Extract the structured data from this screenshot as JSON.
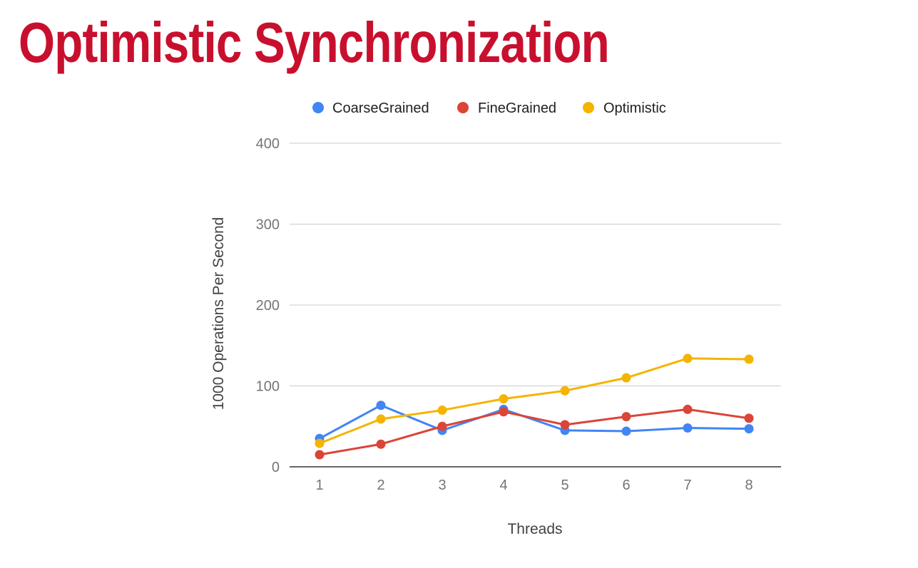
{
  "slide": {
    "title": "Optimistic Synchronization"
  },
  "chart_data": {
    "type": "line",
    "title": "",
    "xlabel": "Threads",
    "ylabel": "1000 Operations Per Second",
    "categories": [
      "1",
      "2",
      "3",
      "4",
      "5",
      "6",
      "7",
      "8"
    ],
    "ylim": [
      0,
      400
    ],
    "yticks": [
      0,
      100,
      200,
      300,
      400
    ],
    "grid": true,
    "legend": "top",
    "series": [
      {
        "name": "CoarseGrained",
        "color": "#4285f4",
        "values": [
          35,
          76,
          45,
          71,
          45,
          44,
          48,
          47
        ]
      },
      {
        "name": "FineGrained",
        "color": "#db4437",
        "values": [
          15,
          28,
          50,
          68,
          52,
          62,
          71,
          60
        ]
      },
      {
        "name": "Optimistic",
        "color": "#f4b400",
        "values": [
          29,
          59,
          70,
          84,
          94,
          110,
          134,
          133
        ]
      }
    ]
  }
}
